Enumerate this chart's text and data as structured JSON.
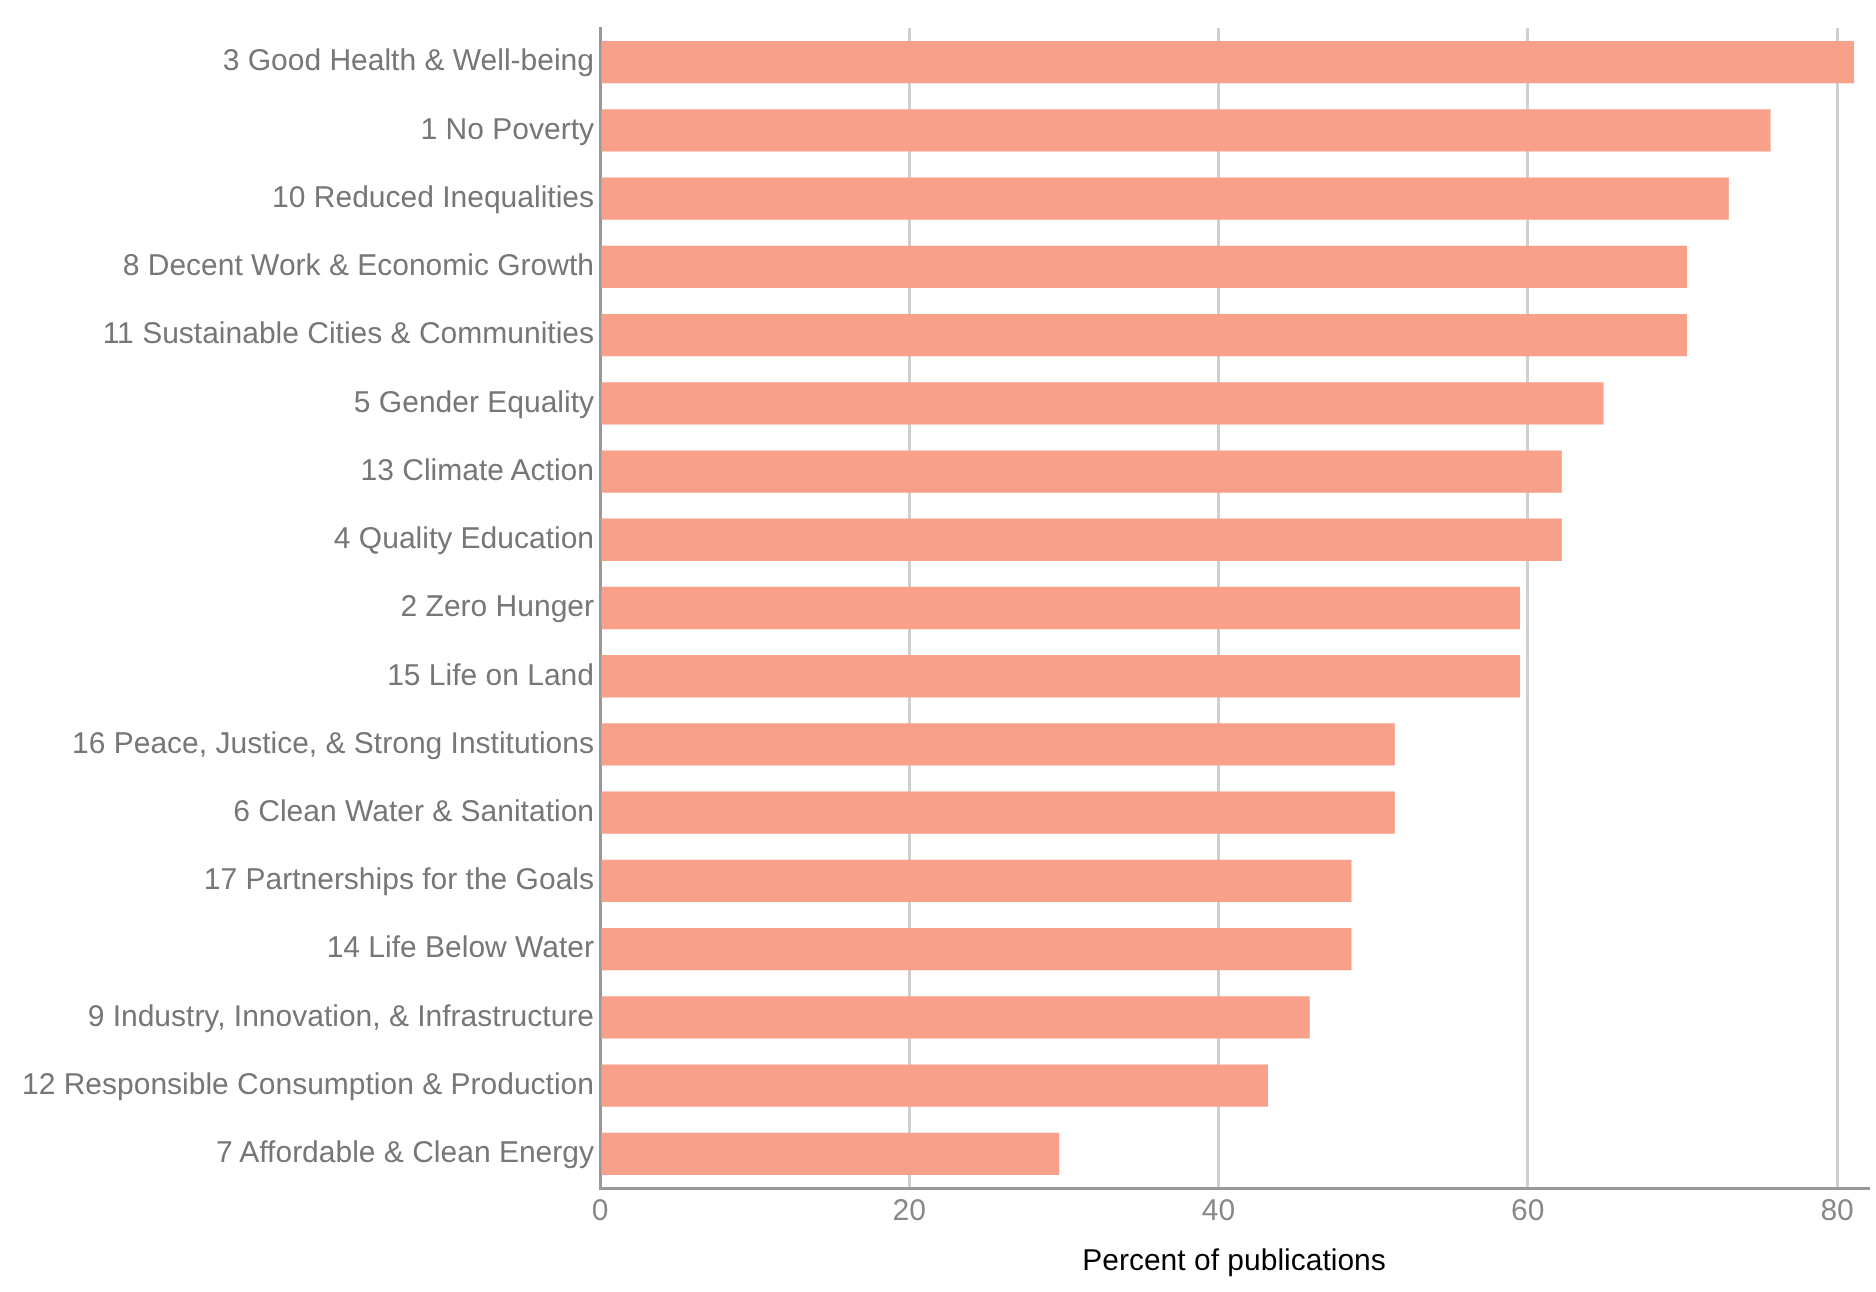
{
  "chart_data": {
    "type": "bar",
    "orientation": "horizontal",
    "xlabel": "Percent of publications",
    "categories": [
      "3 Good Health & Well-being",
      "1 No Poverty",
      "10 Reduced Inequalities",
      "8 Decent Work & Economic Growth",
      "11 Sustainable Cities & Communities",
      "5 Gender Equality",
      "13 Climate Action",
      "4 Quality Education",
      "2 Zero Hunger",
      "15 Life on Land",
      "16 Peace, Justice, & Strong Institutions",
      "6 Clean Water & Sanitation",
      "17 Partnerships for the Goals",
      "14 Life Below Water",
      "9 Industry, Innovation, & Infrastructure",
      "12 Responsible Consumption & Production",
      "7 Affordable & Clean Energy"
    ],
    "values": [
      81.1,
      75.7,
      73.0,
      70.3,
      70.3,
      64.9,
      62.2,
      62.2,
      59.5,
      59.5,
      51.4,
      51.4,
      48.6,
      48.6,
      45.9,
      43.2,
      29.7
    ],
    "color": "#f9a08b",
    "xlim": [
      0,
      82
    ],
    "xticks": [
      0,
      20,
      40,
      60,
      80
    ],
    "grid": "x",
    "legend": false
  }
}
